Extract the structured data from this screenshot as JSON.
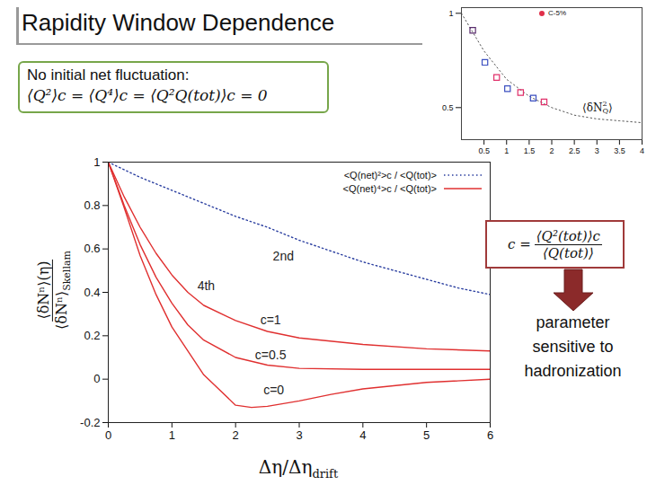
{
  "slide": {
    "title": "Rapidity Window Dependence",
    "box_text": "No initial net fluctuation:",
    "box_formula": "⟨Q²⟩c = ⟨Q⁴⟩c = ⟨Q²Q(tot)⟩c = 0",
    "param_lhs": "c =",
    "param_num": "⟨Q²(tot)⟩c",
    "param_den": "⟨Q(tot)⟩",
    "param_note": "parameter sensitive to hadronization"
  },
  "chart_data": [
    {
      "type": "line",
      "xlabel": "Δη/Δη",
      "xlabel_sub": "drift",
      "ylabel_num": "⟨δNⁿ⟩(η)",
      "ylabel_den": "⟨δNⁿ⟩",
      "ylabel_den_sub": "Skellam",
      "xlim": [
        0,
        6
      ],
      "ylim": [
        -0.2,
        1
      ],
      "xticks": [
        0,
        1,
        2,
        3,
        4,
        5,
        6
      ],
      "yticks": [
        -0.2,
        0,
        0.2,
        0.4,
        0.6,
        0.8,
        1
      ],
      "legend": "top-right",
      "legend_entries": [
        {
          "name": "<Q(net)²>c / <Q(tot)>",
          "color": "#2b3fa0",
          "line_style": "dotted"
        },
        {
          "name": "<Q(net)⁴>c / <Q(tot)>",
          "color": "#e03030",
          "line_style": "solid"
        }
      ],
      "series": [
        {
          "name": "2nd",
          "color": "#2b3fa0",
          "line_style": "dotted",
          "label_x": 2.75,
          "label_y": 0.565,
          "x": [
            0,
            0.5,
            1,
            1.5,
            2,
            2.5,
            3,
            3.5,
            4,
            4.5,
            5,
            5.5,
            6
          ],
          "values": [
            1,
            0.93,
            0.87,
            0.81,
            0.75,
            0.7,
            0.64,
            0.59,
            0.54,
            0.5,
            0.46,
            0.42,
            0.39
          ]
        },
        {
          "name": "c=1",
          "color": "#e03030",
          "line_style": "solid",
          "label_x": 2.55,
          "label_y": 0.27,
          "x": [
            0,
            0.25,
            0.5,
            0.75,
            1,
            1.25,
            1.5,
            2,
            2.5,
            3,
            4,
            5,
            6
          ],
          "values": [
            1,
            0.84,
            0.7,
            0.58,
            0.48,
            0.4,
            0.34,
            0.27,
            0.22,
            0.19,
            0.16,
            0.14,
            0.13
          ]
        },
        {
          "name": "c=0.5",
          "color": "#e03030",
          "line_style": "solid",
          "label_x": 2.55,
          "label_y": 0.11,
          "x": [
            0,
            0.25,
            0.5,
            0.75,
            1,
            1.25,
            1.5,
            2,
            2.5,
            3,
            4,
            5,
            6
          ],
          "values": [
            1,
            0.8,
            0.62,
            0.47,
            0.35,
            0.25,
            0.18,
            0.1,
            0.065,
            0.05,
            0.045,
            0.045,
            0.045
          ]
        },
        {
          "name": "c=0",
          "color": "#e03030",
          "line_style": "solid",
          "label_x": 2.6,
          "label_y": -0.05,
          "x": [
            0,
            0.25,
            0.5,
            0.75,
            1,
            1.5,
            2,
            2.25,
            2.5,
            3,
            3.5,
            4,
            5,
            6
          ],
          "values": [
            1,
            0.79,
            0.57,
            0.39,
            0.24,
            0.02,
            -0.12,
            -0.13,
            -0.125,
            -0.1,
            -0.07,
            -0.045,
            -0.015,
            0
          ]
        }
      ],
      "annotations": [
        {
          "text": "4th",
          "x": 1.4,
          "y": 0.43
        }
      ]
    },
    {
      "type": "scatter",
      "xlim": [
        0,
        4
      ],
      "ylim": [
        0.33,
        1.03
      ],
      "xticks": [
        0.5,
        1,
        1.5,
        2,
        2.5,
        3,
        3.5,
        4
      ],
      "yticks": [
        0.5,
        1
      ],
      "legend": "top-right",
      "series": [
        {
          "name": "C-5%",
          "color": "#e0304a",
          "marker": "square",
          "x": [
            0.25,
            0.52,
            0.78,
            1.02,
            1.31,
            1.59,
            1.83
          ],
          "values": [
            0.91,
            0.74,
            0.66,
            0.6,
            0.58,
            0.55,
            0.53
          ],
          "colors": [
            "#5a2d6e",
            "#3b4fc0",
            "#e0306a",
            "#3b4fc0",
            "#e0306a",
            "#3b4fc0",
            "#e0306a"
          ]
        }
      ],
      "curve": {
        "color": "#555555",
        "line_style": "dotted",
        "x": [
          0,
          0.25,
          0.5,
          1,
          1.5,
          2,
          2.5,
          3,
          3.5,
          4
        ],
        "values": [
          1,
          0.9,
          0.8,
          0.65,
          0.56,
          0.5,
          0.46,
          0.44,
          0.43,
          0.42
        ]
      },
      "annotation": {
        "main": "⟨δN",
        "sup": "2",
        "sub": "Q",
        "end": "⟩"
      }
    }
  ]
}
